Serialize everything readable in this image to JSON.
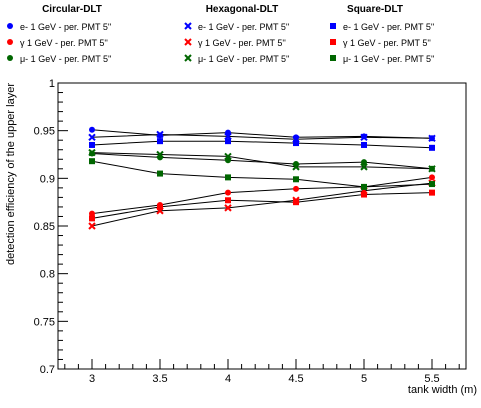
{
  "chart_data": {
    "type": "line",
    "title": "",
    "xlabel": "tank width (m)",
    "ylabel": "detection efficiency of the upper layer",
    "x": [
      3,
      3.5,
      4,
      4.5,
      5,
      5.5
    ],
    "xlim": [
      2.75,
      5.75
    ],
    "ylim": [
      0.7,
      1.0
    ],
    "xticks": [
      "3",
      "3.5",
      "4",
      "4.5",
      "5",
      "5.5"
    ],
    "yticks": [
      "0.7",
      "0.75",
      "0.8",
      "0.85",
      "0.9",
      "0.95",
      "1"
    ],
    "grid": false,
    "legend_groups": [
      {
        "title": "Circular-DLT",
        "marker": "circle"
      },
      {
        "title": "Hexagonal-DLT",
        "marker": "cross"
      },
      {
        "title": "Square-DLT",
        "marker": "square"
      }
    ],
    "series": [
      {
        "name": "e- 1 GeV - per. PMT 5''",
        "group": 0,
        "color": "#0000ff",
        "values": [
          0.951,
          0.945,
          0.948,
          0.943,
          0.944,
          0.942
        ]
      },
      {
        "name": "γ 1 GeV - per. PMT 5''",
        "group": 0,
        "color": "#ff0000",
        "values": [
          0.863,
          0.872,
          0.885,
          0.889,
          0.891,
          0.901
        ]
      },
      {
        "name": "μ- 1 GeV - per. PMT 5''",
        "group": 0,
        "color": "#006600",
        "values": [
          0.926,
          0.922,
          0.919,
          0.915,
          0.917,
          0.91
        ]
      },
      {
        "name": "e- 1 GeV - per. PMT 5''",
        "group": 1,
        "color": "#0000ff",
        "values": [
          0.943,
          0.946,
          0.944,
          0.941,
          0.943,
          0.942
        ]
      },
      {
        "name": "γ 1 GeV - per. PMT 5''",
        "group": 1,
        "color": "#ff0000",
        "values": [
          0.85,
          0.866,
          0.869,
          0.877,
          0.887,
          0.895
        ]
      },
      {
        "name": "μ- 1 GeV - per. PMT 5''",
        "group": 1,
        "color": "#006600",
        "values": [
          0.927,
          0.925,
          0.923,
          0.912,
          0.912,
          0.91
        ]
      },
      {
        "name": "e- 1 GeV - per. PMT 5''",
        "group": 2,
        "color": "#0000ff",
        "values": [
          0.935,
          0.939,
          0.939,
          0.937,
          0.935,
          0.932
        ]
      },
      {
        "name": "γ 1 GeV - per. PMT 5''",
        "group": 2,
        "color": "#ff0000",
        "values": [
          0.858,
          0.87,
          0.877,
          0.875,
          0.883,
          0.885
        ]
      },
      {
        "name": "μ- 1 GeV - per. PMT 5''",
        "group": 2,
        "color": "#006600",
        "values": [
          0.918,
          0.905,
          0.901,
          0.899,
          0.891,
          0.894
        ]
      }
    ]
  }
}
